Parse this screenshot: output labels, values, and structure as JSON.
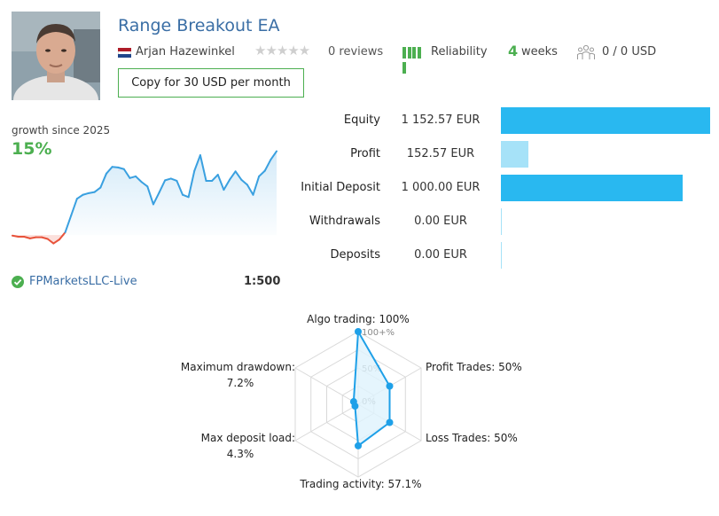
{
  "header": {
    "title": "Range Breakout EA",
    "author": "Arjan Hazewinkel",
    "reviews": "0 reviews",
    "reliability": "Reliability",
    "weeks_number": "4",
    "weeks_label": "weeks",
    "subscribers": "0 / 0 USD",
    "copy_button": "Copy for 30 USD per month",
    "icons": [
      "avatar-photo",
      "netherlands-flag-icon",
      "star-rating-icons",
      "reliability-bars-icon",
      "subscribers-icon"
    ]
  },
  "growth": {
    "label": "growth since 2025",
    "value": "15%",
    "broker": "FPMarketsLLC-Live",
    "leverage": "1:500"
  },
  "metrics": [
    {
      "label": "Equity",
      "value": "1 152.57 EUR",
      "amount": 1152.57,
      "color": "#29b8f0"
    },
    {
      "label": "Profit",
      "value": "152.57 EUR",
      "amount": 152.57,
      "color": "#a6e2f8"
    },
    {
      "label": "Initial Deposit",
      "value": "1 000.00 EUR",
      "amount": 1000.0,
      "color": "#29b8f0"
    },
    {
      "label": "Withdrawals",
      "value": "0.00 EUR",
      "amount": 0,
      "color": "#a6e2f8"
    },
    {
      "label": "Deposits",
      "value": "0.00 EUR",
      "amount": 0,
      "color": "#a6e2f8"
    }
  ],
  "chart_data": [
    {
      "type": "line",
      "x": [
        0,
        1,
        2,
        3,
        4,
        5,
        6,
        7,
        8,
        9,
        10,
        11,
        12,
        13,
        14,
        15,
        16,
        17,
        18,
        19,
        20,
        21,
        22,
        23,
        24,
        25,
        26,
        27,
        28,
        29,
        30,
        31,
        32,
        33,
        34,
        35,
        36,
        37,
        38,
        39,
        40,
        41,
        42,
        43,
        44,
        45
      ],
      "values": [
        -0.1,
        -0.3,
        -0.3,
        -0.6,
        -0.4,
        -0.4,
        -0.7,
        -1.5,
        -0.8,
        0.5,
        3.5,
        6.5,
        7.2,
        7.5,
        7.7,
        8.5,
        11.0,
        12.2,
        12.1,
        11.8,
        10.2,
        10.5,
        9.5,
        8.7,
        5.5,
        7.6,
        9.8,
        10.1,
        9.7,
        7.2,
        6.8,
        11.5,
        14.3,
        9.7,
        9.7,
        10.8,
        8.1,
        9.9,
        11.4,
        9.9,
        9.0,
        7.2,
        10.5,
        11.5,
        13.5,
        15.0
      ],
      "negative_color": "#e8533b",
      "positive_color": "#3aa0e0",
      "ylim": [
        -3,
        17
      ]
    },
    {
      "type": "radar",
      "axes": [
        {
          "label": "Algo trading: 100%",
          "value": 100
        },
        {
          "label": "Profit Trades: 50%",
          "value": 50
        },
        {
          "label": "Loss Trades: 50%",
          "value": 50
        },
        {
          "label": "Trading activity: 57.1%",
          "value": 57.1
        },
        {
          "label": "Max deposit load:",
          "sub": "4.3%",
          "value": 4.3
        },
        {
          "label": "Maximum drawdown:",
          "sub": "7.2%",
          "value": 7.2
        }
      ],
      "ticks": [
        "0%",
        "50%",
        "100+%"
      ],
      "line_color": "#1ea0e8",
      "fill_color": "#dff2fc"
    }
  ]
}
